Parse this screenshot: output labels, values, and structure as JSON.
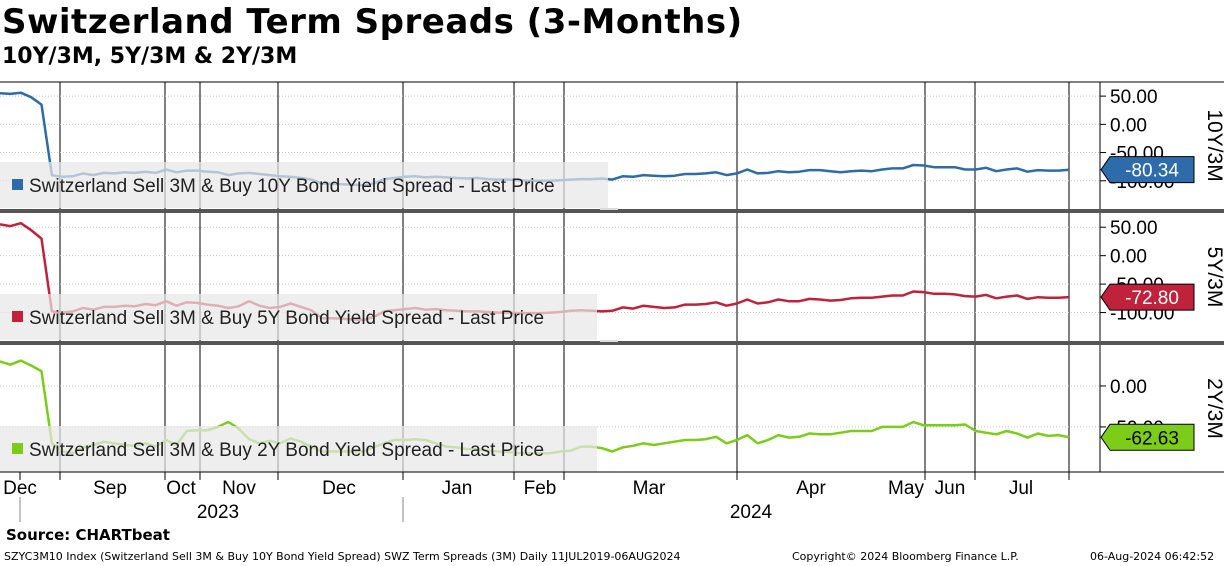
{
  "title": "Switzerland Term Spreads (3-Months)",
  "subtitle": "10Y/3M, 5Y/3M & 2Y/3M",
  "source": "Source: CHARTbeat",
  "footer": {
    "index": "SZYC3M10 Index (Switzerland Sell 3M & Buy 10Y Bond Yield Spread) SWZ Term Spreads (3M)  Daily 11JUL2019-06AUG2024",
    "copyright": "Copyright© 2024 Bloomberg Finance L.P.",
    "timestamp": "06-Aug-2024 06:42:52"
  },
  "chart_data": {
    "type": "line",
    "x_labels": [
      "Dec",
      "Sep",
      "Oct",
      "Nov",
      "Dec",
      "Jan",
      "Feb",
      "Mar",
      "Apr",
      "May",
      "Jun",
      "Jul"
    ],
    "year_labels": [
      "2023",
      "2024"
    ],
    "panels": [
      {
        "name": "10Y/3M",
        "axis_label": "10Y/3M",
        "color": "#2e6bab",
        "legend": "Switzerland Sell 3M & Buy 10Y Bond Yield Spread - Last Price",
        "last_value": -80.34,
        "last_label": "-80.34",
        "ylim": [
          -150,
          75
        ],
        "ticks": [
          50,
          0,
          -50,
          -100
        ],
        "tick_labels": [
          "50.00",
          "0.00",
          "-50.00",
          "-100.00"
        ],
        "values": [
          55,
          54,
          56,
          48,
          35,
          -90,
          -93,
          -92,
          -87,
          -90,
          -86,
          -87,
          -85,
          -86,
          -84,
          -86,
          -80,
          -85,
          -82,
          -82,
          -84,
          -85,
          -90,
          -87,
          -86,
          -88,
          -90,
          -92,
          -93,
          -95,
          -98,
          -105,
          -105,
          -106,
          -107,
          -108,
          -105,
          -97,
          -95,
          -93,
          -92,
          -94,
          -93,
          -94,
          -95,
          -96,
          -95,
          -97,
          -98,
          -98,
          -99,
          -100,
          -100,
          -100,
          -99,
          -98,
          -97,
          -97,
          -96,
          -98,
          -92,
          -93,
          -90,
          -91,
          -92,
          -91,
          -88,
          -88,
          -87,
          -85,
          -90,
          -87,
          -80,
          -87,
          -86,
          -83,
          -85,
          -84,
          -81,
          -81,
          -83,
          -85,
          -83,
          -82,
          -83,
          -80,
          -78,
          -78,
          -72,
          -73,
          -76,
          -76,
          -76,
          -80,
          -80,
          -77,
          -83,
          -80,
          -78,
          -84,
          -81,
          -82,
          -82,
          -80.34
        ]
      },
      {
        "name": "5Y/3M",
        "axis_label": "5Y/3M",
        "color": "#c0223b",
        "legend": "Switzerland Sell 3M & Buy 5Y Bond Yield Spread - Last Price",
        "last_value": -72.8,
        "last_label": "-72.80",
        "ylim": [
          -150,
          75
        ],
        "ticks": [
          50,
          0,
          -50,
          -100
        ],
        "tick_labels": [
          "50.00",
          "0.00",
          "-50.00",
          "-100.00"
        ],
        "values": [
          55,
          52,
          57,
          45,
          30,
          -98,
          -100,
          -98,
          -92,
          -95,
          -90,
          -90,
          -88,
          -89,
          -85,
          -87,
          -80,
          -88,
          -82,
          -83,
          -86,
          -88,
          -92,
          -89,
          -80,
          -88,
          -92,
          -90,
          -84,
          -90,
          -96,
          -110,
          -110,
          -111,
          -112,
          -113,
          -108,
          -98,
          -96,
          -94,
          -92,
          -95,
          -94,
          -96,
          -97,
          -98,
          -98,
          -99,
          -100,
          -100,
          -101,
          -101,
          -101,
          -100,
          -99,
          -97,
          -96,
          -97,
          -98,
          -97,
          -91,
          -93,
          -88,
          -90,
          -92,
          -91,
          -86,
          -86,
          -85,
          -82,
          -88,
          -84,
          -77,
          -84,
          -82,
          -77,
          -80,
          -80,
          -76,
          -77,
          -79,
          -78,
          -75,
          -74,
          -74,
          -72,
          -70,
          -70,
          -63,
          -64,
          -67,
          -67,
          -68,
          -71,
          -72,
          -69,
          -75,
          -72,
          -70,
          -76,
          -73,
          -74,
          -74,
          -72.8
        ]
      },
      {
        "name": "2Y/3M",
        "axis_label": "2Y/3M",
        "color": "#7ccc1a",
        "legend": "Switzerland Sell 3M & Buy 2Y Bond Yield Spread - Last Price",
        "last_value": -62.63,
        "last_label": "-62.63",
        "ylim": [
          -105,
          50
        ],
        "ticks": [
          0,
          -50
        ],
        "tick_labels": [
          "0.00",
          "-50.00"
        ],
        "values": [
          30,
          26,
          31,
          25,
          18,
          -70,
          -80,
          -82,
          -75,
          -72,
          -68,
          -70,
          -72,
          -73,
          -70,
          -74,
          -66,
          -72,
          -55,
          -54,
          -54,
          -50,
          -44,
          -52,
          -65,
          -70,
          -67,
          -70,
          -64,
          -68,
          -74,
          -80,
          -80,
          -80,
          -80,
          -80,
          -75,
          -70,
          -66,
          -66,
          -65,
          -66,
          -70,
          -74,
          -75,
          -77,
          -77,
          -79,
          -80,
          -81,
          -82,
          -82,
          -82,
          -82,
          -80,
          -79,
          -74,
          -74,
          -76,
          -80,
          -75,
          -73,
          -70,
          -72,
          -70,
          -68,
          -66,
          -66,
          -65,
          -62,
          -70,
          -66,
          -60,
          -70,
          -66,
          -60,
          -63,
          -62,
          -58,
          -59,
          -59,
          -57,
          -55,
          -55,
          -55,
          -50,
          -50,
          -50,
          -44,
          -48,
          -48,
          -48,
          -48,
          -47,
          -55,
          -57,
          -59,
          -55,
          -58,
          -63,
          -58,
          -61,
          -60,
          -62.63
        ]
      }
    ]
  }
}
